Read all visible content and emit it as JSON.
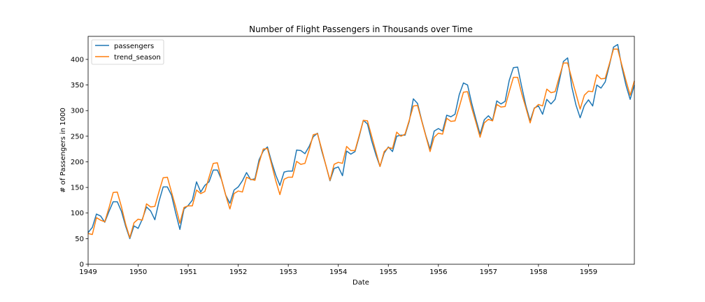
{
  "chart_data": {
    "type": "line",
    "title": "Number of Flight Passengers in Thousands over Time",
    "xlabel": "Date",
    "ylabel": "# of Passengers in 1000",
    "x_ticks": [
      "1949",
      "1950",
      "1951",
      "1952",
      "1953",
      "1954",
      "1955",
      "1956",
      "1957",
      "1958",
      "1959"
    ],
    "y_ticks": [
      "0",
      "50",
      "100",
      "150",
      "200",
      "250",
      "300",
      "350",
      "400"
    ],
    "xlim": [
      "1949-01",
      "1959-12"
    ],
    "ylim": [
      0,
      445
    ],
    "legend_position": "upper-left",
    "grid": false,
    "x": [
      "1949-01",
      "1949-02",
      "1949-03",
      "1949-04",
      "1949-05",
      "1949-06",
      "1949-07",
      "1949-08",
      "1949-09",
      "1949-10",
      "1949-11",
      "1949-12",
      "1950-01",
      "1950-02",
      "1950-03",
      "1950-04",
      "1950-05",
      "1950-06",
      "1950-07",
      "1950-08",
      "1950-09",
      "1950-10",
      "1950-11",
      "1950-12",
      "1951-01",
      "1951-02",
      "1951-03",
      "1951-04",
      "1951-05",
      "1951-06",
      "1951-07",
      "1951-08",
      "1951-09",
      "1951-10",
      "1951-11",
      "1951-12",
      "1952-01",
      "1952-02",
      "1952-03",
      "1952-04",
      "1952-05",
      "1952-06",
      "1952-07",
      "1952-08",
      "1952-09",
      "1952-10",
      "1952-11",
      "1952-12",
      "1953-01",
      "1953-02",
      "1953-03",
      "1953-04",
      "1953-05",
      "1953-06",
      "1953-07",
      "1953-08",
      "1953-09",
      "1953-10",
      "1953-11",
      "1953-12",
      "1954-01",
      "1954-02",
      "1954-03",
      "1954-04",
      "1954-05",
      "1954-06",
      "1954-07",
      "1954-08",
      "1954-09",
      "1954-10",
      "1954-11",
      "1954-12",
      "1955-01",
      "1955-02",
      "1955-03",
      "1955-04",
      "1955-05",
      "1955-06",
      "1955-07",
      "1955-08",
      "1955-09",
      "1955-10",
      "1955-11",
      "1955-12",
      "1956-01",
      "1956-02",
      "1956-03",
      "1956-04",
      "1956-05",
      "1956-06",
      "1956-07",
      "1956-08",
      "1956-09",
      "1956-10",
      "1956-11",
      "1956-12",
      "1957-01",
      "1957-02",
      "1957-03",
      "1957-04",
      "1957-05",
      "1957-06",
      "1957-07",
      "1957-08",
      "1957-09",
      "1957-10",
      "1957-11",
      "1957-12",
      "1958-01",
      "1958-02",
      "1958-03",
      "1958-04",
      "1958-05",
      "1958-06",
      "1958-07",
      "1958-08",
      "1958-09",
      "1958-10",
      "1958-11",
      "1958-12",
      "1959-01",
      "1959-02",
      "1959-03",
      "1959-04",
      "1959-05",
      "1959-06",
      "1959-07",
      "1959-08",
      "1959-09",
      "1959-10",
      "1959-11",
      "1959-12"
    ],
    "series": [
      {
        "name": "passengers",
        "color": "#1f77b4",
        "values": [
          62,
          72,
          98,
          94,
          82,
          103,
          122,
          122,
          103,
          74,
          50,
          75,
          70,
          88,
          112,
          104,
          87,
          123,
          151,
          151,
          135,
          100,
          68,
          108,
          115,
          125,
          161,
          141,
          154,
          161,
          184,
          184,
          165,
          135,
          119,
          145,
          151,
          163,
          179,
          165,
          167,
          204,
          221,
          229,
          200,
          174,
          154,
          180,
          182,
          182,
          223,
          222,
          216,
          230,
          249,
          256,
          222,
          194,
          163,
          187,
          190,
          173,
          221,
          215,
          220,
          249,
          281,
          274,
          241,
          214,
          191,
          217,
          229,
          220,
          250,
          252,
          252,
          279,
          323,
          314,
          281,
          251,
          225,
          260,
          265,
          260,
          291,
          288,
          293,
          331,
          354,
          350,
          314,
          283,
          254,
          282,
          290,
          281,
          319,
          313,
          318,
          359,
          384,
          385,
          346,
          309,
          280,
          305,
          309,
          293,
          322,
          313,
          322,
          358,
          396,
          403,
          346,
          311,
          286,
          310,
          321,
          309,
          350,
          344,
          356,
          388,
          424,
          429,
          385,
          349,
          322,
          350
        ]
      },
      {
        "name": "trend_season",
        "color": "#ff7f0e",
        "values": [
          60,
          58,
          91,
          86,
          83,
          110,
          140,
          141,
          112,
          78,
          52,
          81,
          88,
          86,
          118,
          112,
          113,
          142,
          169,
          170,
          141,
          112,
          80,
          111,
          114,
          114,
          145,
          138,
          142,
          170,
          197,
          198,
          165,
          135,
          108,
          138,
          143,
          141,
          170,
          166,
          164,
          198,
          225,
          226,
          195,
          163,
          136,
          166,
          170,
          170,
          201,
          195,
          197,
          223,
          253,
          255,
          225,
          194,
          164,
          195,
          199,
          197,
          230,
          222,
          222,
          251,
          281,
          280,
          250,
          220,
          191,
          220,
          228,
          226,
          258,
          250,
          254,
          281,
          309,
          310,
          280,
          250,
          220,
          248,
          256,
          254,
          285,
          279,
          280,
          307,
          336,
          337,
          305,
          277,
          248,
          276,
          283,
          280,
          312,
          307,
          308,
          337,
          365,
          365,
          333,
          305,
          276,
          304,
          312,
          309,
          342,
          335,
          337,
          366,
          393,
          393,
          362,
          333,
          303,
          330,
          338,
          337,
          370,
          362,
          363,
          391,
          420,
          420,
          389,
          358,
          330,
          358
        ]
      }
    ]
  }
}
